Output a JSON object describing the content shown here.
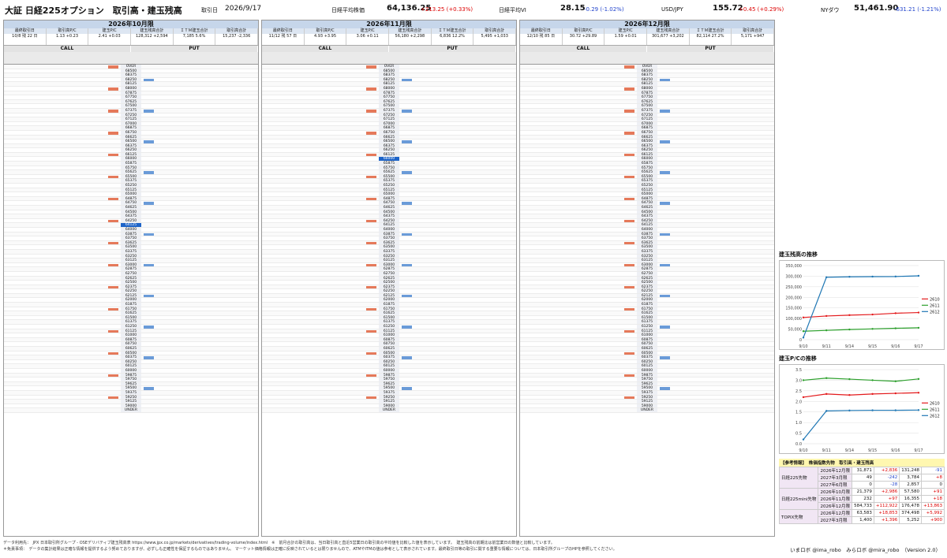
{
  "header": {
    "title": "大証 日経225オプション　取引高・建玉残高",
    "date_label": "取引日",
    "date": "2026/9/17",
    "nk_label": "日経平均株価",
    "nk_val": "64,136.25",
    "nk_chg": "+213.25 (+0.33%)",
    "vi_label": "日経平均VI",
    "vi_val": "28.15",
    "vi_chg": "-0.29 (-1.02%)",
    "fx_label": "USD/JPY",
    "fx_val": "155.72",
    "fx_chg": "+0.45 (+0.29%)",
    "dow_label": "NYダウ",
    "dow_val": "51,461.90",
    "dow_chg": "-631.21 (-1.21%)"
  },
  "panels": [
    {
      "title": "2026年10月限",
      "last_trade": "10/8",
      "days": "残 22 日",
      "pc_vol": "1.13",
      "pc_vol_chg": "+0.23",
      "pc_oi": "2.41",
      "pc_oi_chg": "+0.03",
      "oi_total": "128,312",
      "oi_chg": "+2,594",
      "itm_oi": "7,185",
      "itm_pct": "5.6%",
      "vol_total": "15,237",
      "vol_chg": "-2,336",
      "under_label": "UNDER",
      "over_label": "OVER",
      "strike_top": "OVER",
      "strike_bottom": "UNDER"
    },
    {
      "title": "2026年11月限",
      "last_trade": "11/12",
      "days": "残 57 日",
      "pc_vol": "4.93",
      "pc_vol_chg": "+3.95",
      "pc_oi": "3.06",
      "pc_oi_chg": "+0.11",
      "oi_total": "56,180",
      "oi_chg": "+2,298",
      "itm_oi": "6,836",
      "itm_pct": "12.2%",
      "vol_total": "5,495",
      "vol_chg": "+1,033",
      "under_label": "UNDER",
      "over_label": "OVER",
      "strike_top": "OVER",
      "strike_bottom": "UNDER"
    },
    {
      "title": "2026年12月限",
      "last_trade": "12/10",
      "days": "残 85 日",
      "pc_vol": "30.72",
      "pc_vol_chg": "+29.89",
      "pc_oi": "1.59",
      "pc_oi_chg": "+0.01",
      "oi_total": "301,677",
      "oi_chg": "+3,202",
      "itm_oi": "82,114",
      "itm_pct": "27.2%",
      "vol_total": "5,171",
      "vol_chg": "+947",
      "under_label": "UNDER",
      "over_label": "OVER",
      "strike_top": "OVER",
      "strike_bottom": "UNDER"
    }
  ],
  "labels": {
    "call": "CALL",
    "put": "PUT",
    "last_trade": "最終取引日",
    "pc_vol": "取引高P/C",
    "pc_oi": "建玉P/C",
    "oi_total": "建玉残高合計",
    "itm": "ＩＴＭ建玉合計",
    "vol_total": "取引高合計"
  },
  "strikes": [
    "68500",
    "68375",
    "68250",
    "68125",
    "68000",
    "67875",
    "67750",
    "67625",
    "67500",
    "67375",
    "67250",
    "67125",
    "67000",
    "66875",
    "66750",
    "66625",
    "66500",
    "66375",
    "66250",
    "66125",
    "66000",
    "65875",
    "65750",
    "65625",
    "65500",
    "65375",
    "65250",
    "65125",
    "65000",
    "64875",
    "64750",
    "64625",
    "64500",
    "64375",
    "64250",
    "64125",
    "64000",
    "63875",
    "63750",
    "63625",
    "63500",
    "63375",
    "63250",
    "63125",
    "63000",
    "62875",
    "62750",
    "62625",
    "62500",
    "62375",
    "62250",
    "62125",
    "62000",
    "61875",
    "61750",
    "61625",
    "61500",
    "61375",
    "61250",
    "61125",
    "61000",
    "60875",
    "60750",
    "60625",
    "60500",
    "60375",
    "60250",
    "60125",
    "60000",
    "59875",
    "59750",
    "59625",
    "59500",
    "59375",
    "59250",
    "59125",
    "59000"
  ],
  "chart_data": [
    {
      "type": "line",
      "title": "建玉残高の推移",
      "categories": [
        "9/10",
        "9/11",
        "9/14",
        "9/15",
        "9/16",
        "9/17"
      ],
      "ylim": [
        0,
        350000
      ],
      "series": [
        {
          "name": "2610",
          "color": "#e31a1c",
          "values": [
            105000,
            112000,
            116000,
            119000,
            125000,
            128312
          ]
        },
        {
          "name": "2611",
          "color": "#2ca02c",
          "values": [
            40000,
            44000,
            48000,
            51000,
            53882,
            56180
          ]
        },
        {
          "name": "2612",
          "color": "#1f77b4",
          "values": [
            10000,
            295000,
            297000,
            298000,
            298475,
            301677
          ]
        }
      ]
    },
    {
      "type": "line",
      "title": "建玉P/Cの推移",
      "categories": [
        "9/10",
        "9/11",
        "9/14",
        "9/15",
        "9/16",
        "9/17"
      ],
      "ylim": [
        0,
        3.5
      ],
      "series": [
        {
          "name": "2610",
          "color": "#e31a1c",
          "values": [
            2.2,
            2.35,
            2.3,
            2.35,
            2.38,
            2.41
          ]
        },
        {
          "name": "2611",
          "color": "#2ca02c",
          "values": [
            3.0,
            3.1,
            3.05,
            3.0,
            2.95,
            3.06
          ]
        },
        {
          "name": "2612",
          "color": "#1f77b4",
          "values": [
            0.2,
            1.55,
            1.57,
            1.58,
            1.58,
            1.59
          ]
        }
      ]
    }
  ],
  "futures": {
    "title": "【参考情報】　株価指数先物　取引高・建玉残高",
    "rows": [
      [
        "2026年12月限",
        "31,871",
        "+2,836",
        "131,248",
        "-91"
      ],
      [
        "2027年3月限",
        "49",
        "-242",
        "3,784",
        "+8"
      ],
      [
        "2027年6月限",
        "0",
        "-28",
        "2,857",
        "0"
      ],
      [
        "2026年10月限",
        "21,379",
        "+2,986",
        "57,580",
        "+91"
      ],
      [
        "2026年11月限",
        "232",
        "+97",
        "16,355",
        "+18"
      ],
      [
        "2026年12月限",
        "584,733",
        "+112,922",
        "176,478",
        "+13,863"
      ],
      [
        "2026年12月限",
        "63,583",
        "+18,853",
        "374,498",
        "+5,992"
      ],
      [
        "2027年3月限",
        "1,400",
        "+1,396",
        "5,252",
        "+900"
      ]
    ],
    "groups": [
      "日経225先物",
      "日経225mini先物",
      "TOPIX先物"
    ]
  },
  "footer": {
    "line1": "データ利用先：　JPX 日本取引所グループ - OSEデリバティブ建玉残高表 https://www.jpx.co.jp/markets/derivatives/trading-volume/index.html　※　前月合計の取引高は、当日取引高と直近5営業日の取引高の平均値を比較した値を表示しています。　建玉残高の前期比は前営業日の数値と比較しています。",
    "line2": "＊免責事項：　データの集計結果は正確な情報を提供するよう努めておりますが、必ずしも正確性を保証するものではありません。 マーケット価格情報は正確に反映されているとは限りませんので、ATMやITMの値は参考として表示されています。最終取引日等の取引に関する重要な情報については、日本取引所グループのHPを参照してください。",
    "sig": "いまロボ @ima_robo　みらロボ @mira_robo　（Version 2.0）"
  }
}
